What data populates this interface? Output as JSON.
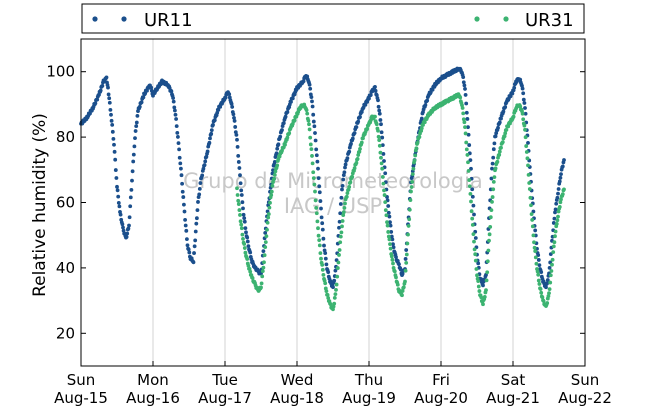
{
  "chart_data": {
    "type": "scatter",
    "title": "",
    "xlabel": "",
    "ylabel": "Relative humidity (%)",
    "xlim": [
      "2015-08-15 00:00",
      "2015-08-22 00:00"
    ],
    "ylim": [
      10,
      110
    ],
    "yticks": [
      20,
      40,
      60,
      80,
      100
    ],
    "xticks": [
      {
        "date": "2015-08-15",
        "day": "Sun",
        "label": "Aug-15"
      },
      {
        "date": "2015-08-16",
        "day": "Mon",
        "label": "Aug-16"
      },
      {
        "date": "2015-08-17",
        "day": "Tue",
        "label": "Aug-17"
      },
      {
        "date": "2015-08-18",
        "day": "Wed",
        "label": "Aug-18"
      },
      {
        "date": "2015-08-19",
        "day": "Thu",
        "label": "Aug-19"
      },
      {
        "date": "2015-08-20",
        "day": "Fri",
        "label": "Aug-20"
      },
      {
        "date": "2015-08-21",
        "day": "Sat",
        "label": "Aug-21"
      },
      {
        "date": "2015-08-22",
        "day": "Sun",
        "label": "Aug-22"
      }
    ],
    "grid": "vertical",
    "legend_position": "top",
    "watermark": [
      "Grupo de Micrometeorologia",
      "IAG / USP"
    ],
    "series": [
      {
        "name": "UR11",
        "color": "#1b4f8c",
        "points": [
          [
            "2015-08-15 00:00",
            84
          ],
          [
            "2015-08-15 02:00",
            86
          ],
          [
            "2015-08-15 04:00",
            89
          ],
          [
            "2015-08-15 06:00",
            93
          ],
          [
            "2015-08-15 07:30",
            97
          ],
          [
            "2015-08-15 08:30",
            98
          ],
          [
            "2015-08-15 09:00",
            95
          ],
          [
            "2015-08-15 10:00",
            87
          ],
          [
            "2015-08-15 11:00",
            78
          ],
          [
            "2015-08-15 12:00",
            65
          ],
          [
            "2015-08-15 13:00",
            57
          ],
          [
            "2015-08-15 14:00",
            52
          ],
          [
            "2015-08-15 15:00",
            49
          ],
          [
            "2015-08-15 16:00",
            53
          ],
          [
            "2015-08-15 17:00",
            67
          ],
          [
            "2015-08-15 18:00",
            80
          ],
          [
            "2015-08-15 19:00",
            88
          ],
          [
            "2015-08-15 21:00",
            93
          ],
          [
            "2015-08-15 23:00",
            96
          ],
          [
            "2015-08-16 00:00",
            93
          ],
          [
            "2015-08-16 01:30",
            95
          ],
          [
            "2015-08-16 03:00",
            97
          ],
          [
            "2015-08-16 05:00",
            96
          ],
          [
            "2015-08-16 06:30",
            93
          ],
          [
            "2015-08-16 07:30",
            87
          ],
          [
            "2015-08-16 08:30",
            78
          ],
          [
            "2015-08-16 09:30",
            68
          ],
          [
            "2015-08-16 10:30",
            57
          ],
          [
            "2015-08-16 11:30",
            47
          ],
          [
            "2015-08-16 12:30",
            43
          ],
          [
            "2015-08-16 13:30",
            42
          ],
          [
            "2015-08-16 15:00",
            60
          ],
          [
            "2015-08-16 16:00",
            67
          ],
          [
            "2015-08-16 17:00",
            71
          ],
          [
            "2015-08-16 18:00",
            75
          ],
          [
            "2015-08-16 20:00",
            84
          ],
          [
            "2015-08-16 22:00",
            89
          ],
          [
            "2015-08-17 00:00",
            92
          ],
          [
            "2015-08-17 01:00",
            94
          ],
          [
            "2015-08-17 02:00",
            91
          ],
          [
            "2015-08-17 03:00",
            86
          ],
          [
            "2015-08-17 04:00",
            79
          ],
          [
            "2015-08-17 05:00",
            68
          ],
          [
            "2015-08-17 06:00",
            58
          ],
          [
            "2015-08-17 07:00",
            51
          ],
          [
            "2015-08-17 08:00",
            46
          ],
          [
            "2015-08-17 09:00",
            42
          ],
          [
            "2015-08-17 10:00",
            40
          ],
          [
            "2015-08-17 11:00",
            39
          ],
          [
            "2015-08-17 12:00",
            38
          ],
          [
            "2015-08-17 14:00",
            56
          ],
          [
            "2015-08-17 16:00",
            70
          ],
          [
            "2015-08-17 18:00",
            79
          ],
          [
            "2015-08-17 20:00",
            86
          ],
          [
            "2015-08-17 22:00",
            91
          ],
          [
            "2015-08-18 00:00",
            95
          ],
          [
            "2015-08-18 02:00",
            97
          ],
          [
            "2015-08-18 03:00",
            99
          ],
          [
            "2015-08-18 04:00",
            97
          ],
          [
            "2015-08-18 05:00",
            91
          ],
          [
            "2015-08-18 06:00",
            81
          ],
          [
            "2015-08-18 07:00",
            70
          ],
          [
            "2015-08-18 08:00",
            58
          ],
          [
            "2015-08-18 09:00",
            47
          ],
          [
            "2015-08-18 10:00",
            40
          ],
          [
            "2015-08-18 11:00",
            36
          ],
          [
            "2015-08-18 12:00",
            34
          ],
          [
            "2015-08-18 13:00",
            40
          ],
          [
            "2015-08-18 14:00",
            52
          ],
          [
            "2015-08-18 15:00",
            64
          ],
          [
            "2015-08-18 16:00",
            71
          ],
          [
            "2015-08-18 18:00",
            78
          ],
          [
            "2015-08-18 20:00",
            84
          ],
          [
            "2015-08-18 22:00",
            89
          ],
          [
            "2015-08-19 00:00",
            92
          ],
          [
            "2015-08-19 01:00",
            94
          ],
          [
            "2015-08-19 02:00",
            95
          ],
          [
            "2015-08-19 03:00",
            91
          ],
          [
            "2015-08-19 04:00",
            84
          ],
          [
            "2015-08-19 05:00",
            73
          ],
          [
            "2015-08-19 06:00",
            62
          ],
          [
            "2015-08-19 07:00",
            54
          ],
          [
            "2015-08-19 08:00",
            47
          ],
          [
            "2015-08-19 09:00",
            43
          ],
          [
            "2015-08-19 10:00",
            41
          ],
          [
            "2015-08-19 11:00",
            38
          ],
          [
            "2015-08-19 12:00",
            40
          ],
          [
            "2015-08-19 14:00",
            66
          ],
          [
            "2015-08-19 16:00",
            78
          ],
          [
            "2015-08-19 18:00",
            88
          ],
          [
            "2015-08-19 20:00",
            93
          ],
          [
            "2015-08-19 22:00",
            96
          ],
          [
            "2015-08-20 00:00",
            98
          ],
          [
            "2015-08-20 02:00",
            99
          ],
          [
            "2015-08-20 04:00",
            100
          ],
          [
            "2015-08-20 06:00",
            101
          ],
          [
            "2015-08-20 07:00",
            100
          ],
          [
            "2015-08-20 08:00",
            95
          ],
          [
            "2015-08-20 09:00",
            83
          ],
          [
            "2015-08-20 10:00",
            70
          ],
          [
            "2015-08-20 11:00",
            56
          ],
          [
            "2015-08-20 12:00",
            44
          ],
          [
            "2015-08-20 13:00",
            37
          ],
          [
            "2015-08-20 14:00",
            35
          ],
          [
            "2015-08-20 15:00",
            38
          ],
          [
            "2015-08-20 16:00",
            55
          ],
          [
            "2015-08-20 17:00",
            70
          ],
          [
            "2015-08-20 18:00",
            80
          ],
          [
            "2015-08-20 20:00",
            86
          ],
          [
            "2015-08-20 22:00",
            91
          ],
          [
            "2015-08-21 00:00",
            94
          ],
          [
            "2015-08-21 01:00",
            97
          ],
          [
            "2015-08-21 02:00",
            98
          ],
          [
            "2015-08-21 03:00",
            96
          ],
          [
            "2015-08-21 04:00",
            89
          ],
          [
            "2015-08-21 05:00",
            78
          ],
          [
            "2015-08-21 06:00",
            66
          ],
          [
            "2015-08-21 07:00",
            55
          ],
          [
            "2015-08-21 08:00",
            46
          ],
          [
            "2015-08-21 09:00",
            40
          ],
          [
            "2015-08-21 10:00",
            36
          ],
          [
            "2015-08-21 11:00",
            34
          ],
          [
            "2015-08-21 12:00",
            38
          ],
          [
            "2015-08-21 13:00",
            48
          ],
          [
            "2015-08-21 14:00",
            57
          ],
          [
            "2015-08-21 15:00",
            63
          ],
          [
            "2015-08-21 16:00",
            69
          ],
          [
            "2015-08-21 17:00",
            73
          ]
        ]
      },
      {
        "name": "UR31",
        "color": "#3cb371",
        "points": [
          [
            "2015-08-17 04:00",
            64
          ],
          [
            "2015-08-17 05:00",
            56
          ],
          [
            "2015-08-17 06:00",
            49
          ],
          [
            "2015-08-17 07:00",
            44
          ],
          [
            "2015-08-17 08:00",
            40
          ],
          [
            "2015-08-17 09:00",
            37
          ],
          [
            "2015-08-17 10:00",
            35
          ],
          [
            "2015-08-17 11:00",
            33
          ],
          [
            "2015-08-17 12:00",
            34
          ],
          [
            "2015-08-17 13:00",
            42
          ],
          [
            "2015-08-17 14:00",
            52
          ],
          [
            "2015-08-17 15:00",
            60
          ],
          [
            "2015-08-17 16:00",
            66
          ],
          [
            "2015-08-17 17:00",
            70
          ],
          [
            "2015-08-17 18:00",
            74
          ],
          [
            "2015-08-17 20:00",
            78
          ],
          [
            "2015-08-17 22:00",
            83
          ],
          [
            "2015-08-18 00:00",
            87
          ],
          [
            "2015-08-18 01:00",
            89
          ],
          [
            "2015-08-18 02:00",
            90
          ],
          [
            "2015-08-18 03:00",
            89
          ],
          [
            "2015-08-18 04:00",
            84
          ],
          [
            "2015-08-18 05:00",
            74
          ],
          [
            "2015-08-18 06:00",
            63
          ],
          [
            "2015-08-18 07:00",
            52
          ],
          [
            "2015-08-18 08:00",
            43
          ],
          [
            "2015-08-18 09:00",
            37
          ],
          [
            "2015-08-18 10:00",
            32
          ],
          [
            "2015-08-18 11:00",
            29
          ],
          [
            "2015-08-18 12:00",
            27
          ],
          [
            "2015-08-18 13:00",
            33
          ],
          [
            "2015-08-18 14:00",
            44
          ],
          [
            "2015-08-18 15:00",
            53
          ],
          [
            "2015-08-18 16:00",
            60
          ],
          [
            "2015-08-18 18:00",
            67
          ],
          [
            "2015-08-18 20:00",
            73
          ],
          [
            "2015-08-18 22:00",
            80
          ],
          [
            "2015-08-19 00:00",
            84
          ],
          [
            "2015-08-19 01:00",
            86
          ],
          [
            "2015-08-19 02:00",
            86
          ],
          [
            "2015-08-19 03:00",
            82
          ],
          [
            "2015-08-19 04:00",
            74
          ],
          [
            "2015-08-19 05:00",
            64
          ],
          [
            "2015-08-19 06:00",
            54
          ],
          [
            "2015-08-19 07:00",
            47
          ],
          [
            "2015-08-19 08:00",
            41
          ],
          [
            "2015-08-19 09:00",
            37
          ],
          [
            "2015-08-19 10:00",
            33
          ],
          [
            "2015-08-19 11:00",
            32
          ],
          [
            "2015-08-19 12:00",
            36
          ],
          [
            "2015-08-19 13:00",
            50
          ],
          [
            "2015-08-19 14:00",
            63
          ],
          [
            "2015-08-19 15:00",
            72
          ],
          [
            "2015-08-19 16:00",
            78
          ],
          [
            "2015-08-19 18:00",
            84
          ],
          [
            "2015-08-19 20:00",
            87
          ],
          [
            "2015-08-19 22:00",
            89
          ],
          [
            "2015-08-20 00:00",
            90
          ],
          [
            "2015-08-20 02:00",
            91
          ],
          [
            "2015-08-20 04:00",
            92
          ],
          [
            "2015-08-20 06:00",
            93
          ],
          [
            "2015-08-20 07:00",
            90
          ],
          [
            "2015-08-20 08:00",
            83
          ],
          [
            "2015-08-20 09:00",
            72
          ],
          [
            "2015-08-20 10:00",
            60
          ],
          [
            "2015-08-20 11:00",
            48
          ],
          [
            "2015-08-20 12:00",
            38
          ],
          [
            "2015-08-20 13:00",
            32
          ],
          [
            "2015-08-20 14:00",
            29
          ],
          [
            "2015-08-20 15:00",
            33
          ],
          [
            "2015-08-20 16:00",
            48
          ],
          [
            "2015-08-20 17:00",
            60
          ],
          [
            "2015-08-20 18:00",
            70
          ],
          [
            "2015-08-20 20:00",
            77
          ],
          [
            "2015-08-20 22:00",
            83
          ],
          [
            "2015-08-21 00:00",
            86
          ],
          [
            "2015-08-21 01:00",
            89
          ],
          [
            "2015-08-21 02:00",
            90
          ],
          [
            "2015-08-21 03:00",
            88
          ],
          [
            "2015-08-21 04:00",
            82
          ],
          [
            "2015-08-21 05:00",
            71
          ],
          [
            "2015-08-21 06:00",
            59
          ],
          [
            "2015-08-21 07:00",
            48
          ],
          [
            "2015-08-21 08:00",
            40
          ],
          [
            "2015-08-21 09:00",
            34
          ],
          [
            "2015-08-21 10:00",
            30
          ],
          [
            "2015-08-21 11:00",
            28
          ],
          [
            "2015-08-21 12:00",
            32
          ],
          [
            "2015-08-21 13:00",
            41
          ],
          [
            "2015-08-21 14:00",
            50
          ],
          [
            "2015-08-21 15:00",
            56
          ],
          [
            "2015-08-21 16:00",
            61
          ],
          [
            "2015-08-21 17:00",
            64
          ]
        ]
      }
    ]
  }
}
